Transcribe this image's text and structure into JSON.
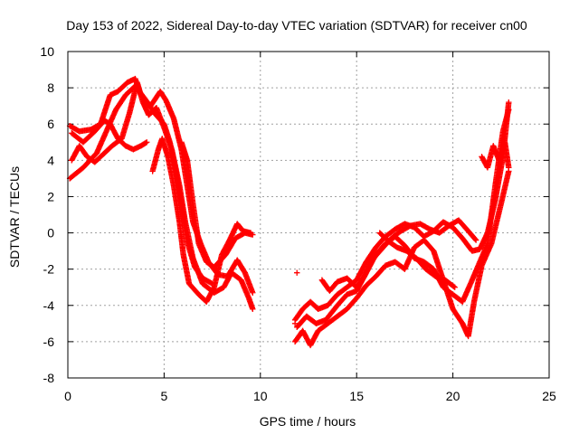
{
  "chart_data": {
    "type": "scatter",
    "title": "Day 153 of 2022, Sidereal Day-to-day VTEC variation (SDTVAR) for receiver cn00",
    "xlabel": "GPS time / hours",
    "ylabel": "SDTVAR / TECUs",
    "xlim": [
      0,
      25
    ],
    "ylim": [
      -8,
      10
    ],
    "xticks": [
      0,
      5,
      10,
      15,
      20,
      25
    ],
    "yticks": [
      -8,
      -6,
      -4,
      -2,
      0,
      2,
      4,
      6,
      8,
      10
    ],
    "grid": true,
    "marker": "plus",
    "series": [
      {
        "name": "SDTVAR",
        "color": "#ff0000",
        "tracks": [
          [
            [
              0.1,
              3.0
            ],
            [
              0.8,
              3.6
            ],
            [
              1.5,
              4.4
            ],
            [
              2.0,
              5.6
            ],
            [
              2.5,
              6.8
            ],
            [
              3.0,
              7.6
            ],
            [
              3.5,
              8.1
            ],
            [
              4.0,
              7.4
            ],
            [
              4.5,
              6.6
            ],
            [
              5.0,
              6.0
            ],
            [
              5.3,
              5.0
            ],
            [
              5.6,
              3.5
            ],
            [
              5.9,
              1.5
            ],
            [
              6.2,
              -0.5
            ],
            [
              6.6,
              -1.9
            ],
            [
              7.0,
              -2.5
            ],
            [
              7.5,
              -2.8
            ]
          ],
          [
            [
              0.2,
              4.0
            ],
            [
              0.6,
              4.8
            ],
            [
              1.0,
              4.2
            ],
            [
              1.4,
              3.9
            ],
            [
              1.8,
              4.3
            ],
            [
              2.3,
              4.8
            ],
            [
              2.8,
              5.2
            ],
            [
              3.2,
              6.6
            ],
            [
              3.6,
              8.3
            ],
            [
              3.9,
              7.2
            ],
            [
              4.2,
              6.5
            ],
            [
              4.6,
              6.9
            ],
            [
              5.0,
              5.8
            ],
            [
              5.4,
              4.6
            ],
            [
              5.8,
              2.6
            ],
            [
              6.1,
              0.6
            ],
            [
              6.5,
              -1.4
            ],
            [
              7.0,
              -2.8
            ],
            [
              7.6,
              -3.3
            ],
            [
              8.1,
              -3.0
            ],
            [
              8.5,
              -2.2
            ],
            [
              9.0,
              -2.6
            ],
            [
              9.4,
              -3.6
            ],
            [
              9.6,
              -4.2
            ]
          ],
          [
            [
              0.1,
              5.9
            ],
            [
              0.6,
              5.6
            ],
            [
              1.2,
              5.7
            ],
            [
              1.7,
              6.0
            ],
            [
              2.2,
              7.6
            ],
            [
              2.6,
              7.8
            ],
            [
              3.1,
              8.3
            ],
            [
              3.5,
              8.5
            ],
            [
              3.8,
              7.6
            ],
            [
              4.3,
              7.0
            ],
            [
              4.8,
              7.8
            ],
            [
              5.1,
              7.3
            ],
            [
              5.5,
              6.3
            ],
            [
              5.9,
              4.6
            ],
            [
              6.2,
              2.6
            ],
            [
              6.5,
              0.6
            ],
            [
              6.9,
              -0.6
            ],
            [
              7.3,
              -1.6
            ],
            [
              7.8,
              -2.3
            ],
            [
              8.3,
              -2.4
            ],
            [
              8.8,
              -1.5
            ],
            [
              9.2,
              -2.2
            ],
            [
              9.6,
              -3.3
            ]
          ],
          [
            [
              0.2,
              5.5
            ],
            [
              0.8,
              5.0
            ],
            [
              1.4,
              5.6
            ],
            [
              1.9,
              6.2
            ],
            [
              2.2,
              6.0
            ],
            [
              2.6,
              5.2
            ],
            [
              3.0,
              4.8
            ],
            [
              3.4,
              4.6
            ],
            [
              3.8,
              4.8
            ],
            [
              4.1,
              5.0
            ]
          ],
          [
            [
              4.4,
              3.4
            ],
            [
              4.7,
              4.6
            ],
            [
              4.9,
              5.2
            ],
            [
              5.2,
              4.2
            ],
            [
              5.5,
              2.6
            ],
            [
              5.8,
              0.6
            ],
            [
              6.0,
              -1.2
            ],
            [
              6.3,
              -2.8
            ],
            [
              6.8,
              -3.4
            ],
            [
              7.2,
              -3.8
            ],
            [
              7.6,
              -3.0
            ],
            [
              8.0,
              -1.2
            ],
            [
              8.4,
              -0.4
            ],
            [
              8.8,
              0.5
            ],
            [
              9.1,
              0.1
            ],
            [
              9.5,
              0.0
            ]
          ],
          [
            [
              5.9,
              5.0
            ],
            [
              6.2,
              4.0
            ],
            [
              6.5,
              1.6
            ],
            [
              6.8,
              -0.6
            ],
            [
              7.2,
              -1.6
            ],
            [
              7.6,
              -1.9
            ],
            [
              8.2,
              -1.2
            ],
            [
              8.7,
              -0.3
            ],
            [
              9.2,
              0.0
            ],
            [
              9.6,
              -0.1
            ]
          ],
          [
            [
              11.8,
              -4.8
            ],
            [
              12.2,
              -4.2
            ],
            [
              12.6,
              -3.8
            ],
            [
              13.0,
              -4.2
            ],
            [
              13.5,
              -4.0
            ],
            [
              14.0,
              -3.4
            ],
            [
              14.5,
              -3.0
            ],
            [
              15.0,
              -2.6
            ],
            [
              15.5,
              -1.6
            ],
            [
              16.0,
              -0.8
            ],
            [
              16.5,
              -0.2
            ],
            [
              17.0,
              0.2
            ],
            [
              17.5,
              0.5
            ],
            [
              18.0,
              0.3
            ],
            [
              18.5,
              -0.2
            ],
            [
              19.0,
              0.1
            ],
            [
              19.5,
              0.6
            ],
            [
              20.0,
              0.3
            ],
            [
              20.5,
              -0.3
            ],
            [
              21.0,
              -1.0
            ],
            [
              21.4,
              -0.9
            ],
            [
              21.8,
              0.0
            ],
            [
              22.2,
              1.8
            ],
            [
              22.6,
              4.2
            ],
            [
              22.9,
              7.2
            ]
          ],
          [
            [
              11.8,
              -6.0
            ],
            [
              12.2,
              -5.4
            ],
            [
              12.6,
              -6.2
            ],
            [
              13.0,
              -5.4
            ],
            [
              13.5,
              -5.0
            ],
            [
              14.0,
              -4.6
            ],
            [
              14.5,
              -4.2
            ],
            [
              15.0,
              -3.6
            ],
            [
              15.5,
              -2.9
            ],
            [
              16.0,
              -2.4
            ],
            [
              16.5,
              -1.8
            ],
            [
              17.0,
              -1.6
            ],
            [
              17.5,
              -2.0
            ],
            [
              18.0,
              -0.8
            ],
            [
              18.5,
              -0.4
            ],
            [
              19.0,
              -1.0
            ],
            [
              19.5,
              -2.6
            ],
            [
              20.0,
              -4.2
            ],
            [
              20.5,
              -5.0
            ],
            [
              20.8,
              -5.7
            ],
            [
              21.1,
              -3.8
            ],
            [
              21.5,
              -1.8
            ],
            [
              22.0,
              -0.6
            ],
            [
              22.5,
              1.6
            ],
            [
              22.9,
              3.4
            ]
          ],
          [
            [
              11.9,
              -5.2
            ],
            [
              12.4,
              -4.6
            ],
            [
              12.9,
              -5.0
            ],
            [
              13.4,
              -4.8
            ],
            [
              14.0,
              -4.0
            ],
            [
              14.5,
              -3.4
            ],
            [
              15.0,
              -3.2
            ],
            [
              15.5,
              -2.2
            ],
            [
              16.0,
              -1.2
            ],
            [
              16.5,
              -0.6
            ],
            [
              17.0,
              -0.2
            ],
            [
              17.5,
              -0.7
            ],
            [
              18.0,
              -1.4
            ],
            [
              18.5,
              -1.6
            ],
            [
              19.0,
              -2.0
            ],
            [
              19.5,
              -3.0
            ],
            [
              20.0,
              -3.4
            ],
            [
              20.5,
              -3.8
            ],
            [
              21.0,
              -2.6
            ],
            [
              21.4,
              -1.6
            ],
            [
              21.8,
              -0.6
            ],
            [
              22.2,
              2.6
            ],
            [
              22.6,
              5.6
            ],
            [
              22.9,
              6.8
            ]
          ],
          [
            [
              13.2,
              -2.6
            ],
            [
              13.6,
              -3.2
            ],
            [
              14.0,
              -2.7
            ],
            [
              14.5,
              -2.5
            ],
            [
              15.0,
              -3.0
            ],
            [
              15.4,
              -2.4
            ],
            [
              15.8,
              -1.5
            ],
            [
              16.3,
              -0.9
            ],
            [
              16.8,
              -0.3
            ],
            [
              17.3,
              0.1
            ],
            [
              17.8,
              0.4
            ],
            [
              18.3,
              0.5
            ],
            [
              18.8,
              0.2
            ],
            [
              19.3,
              0.0
            ],
            [
              19.8,
              0.4
            ],
            [
              20.3,
              0.7
            ],
            [
              20.8,
              0.1
            ],
            [
              21.2,
              -0.4
            ]
          ],
          [
            [
              16.2,
              0.0
            ],
            [
              16.7,
              -0.5
            ],
            [
              17.1,
              -0.8
            ],
            [
              17.6,
              -1.0
            ],
            [
              18.1,
              -1.4
            ],
            [
              18.6,
              -2.0
            ],
            [
              19.1,
              -2.4
            ],
            [
              19.6,
              -2.6
            ],
            [
              20.1,
              -3.0
            ]
          ],
          [
            [
              21.5,
              4.2
            ],
            [
              21.8,
              3.6
            ],
            [
              22.1,
              4.8
            ],
            [
              22.4,
              4.0
            ],
            [
              22.7,
              5.0
            ],
            [
              22.9,
              3.6
            ]
          ]
        ],
        "isolated": [
          [
            11.9,
            -2.2
          ],
          [
            11.8,
            -5.0
          ]
        ]
      }
    ]
  }
}
